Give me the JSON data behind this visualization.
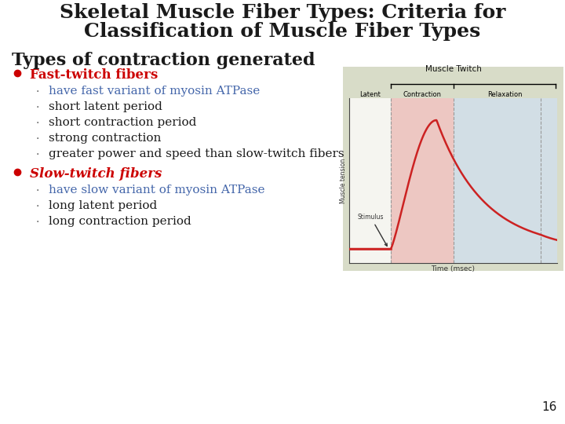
{
  "title_line1": "Skeletal Muscle Fiber Types: Criteria for",
  "title_line2": "Classification of Muscle Fiber Types",
  "title_fontsize": 18,
  "title_color": "#1a1a1a",
  "bg_color": "#ffffff",
  "slide_number": "16",
  "section_heading": "Types of contraction generated",
  "section_heading_fontsize": 16,
  "bullet1_text": "Fast-twitch fibers",
  "bullet1_color": "#cc0000",
  "sub_bullets1": [
    [
      "have fast variant of myosin ATPase",
      "#4466aa"
    ],
    [
      "short latent period",
      "#1a1a1a"
    ],
    [
      "short contraction period",
      "#1a1a1a"
    ],
    [
      "strong contraction",
      "#1a1a1a"
    ],
    [
      "greater power and speed than slow-twitch fibers",
      "#1a1a1a"
    ]
  ],
  "bullet2_text": "Slow-twitch fibers",
  "bullet2_color": "#cc0000",
  "sub_bullets2": [
    [
      "have slow variant of myosin ATPase",
      "#4466aa"
    ],
    [
      "long latent period",
      "#1a1a1a"
    ],
    [
      "long contraction period",
      "#1a1a1a"
    ]
  ],
  "chart_bg": "#d8dcc8",
  "chart_title": "Muscle Twitch",
  "latent_bg": "#f5f5f0",
  "contraction_bg": "#f5c0c0",
  "relaxation_bg": "#d0dff0",
  "curve_color": "#cc2222",
  "ylabel_text": "Muscle tension",
  "xlabel_text": "Time (msec)",
  "stimulus_label": "Stimulus",
  "period_labels": [
    "Latent\nperiod",
    "Contraction\nperiod",
    "Relaxation\nperiod"
  ],
  "sub_bullet_fontsize": 11,
  "bullet_fontsize": 12
}
